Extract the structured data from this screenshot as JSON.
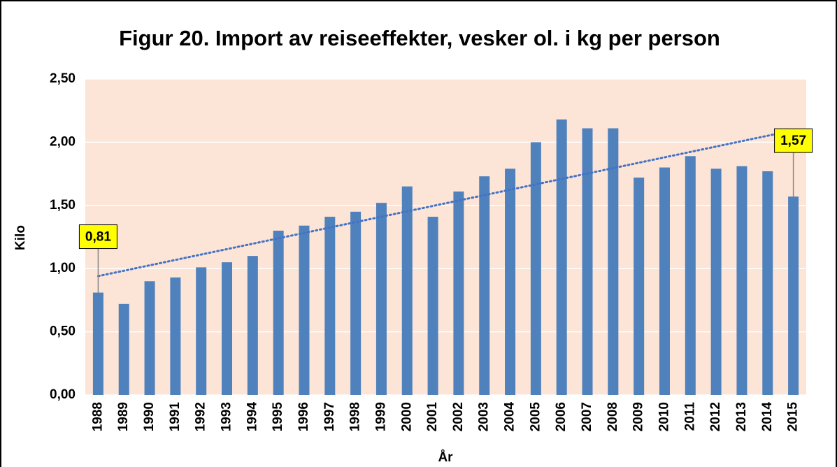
{
  "chart_data": {
    "type": "bar",
    "title": "Figur 20. Import av reiseeffekter, vesker ol. i kg per person",
    "x_label": "År",
    "y_label": "Kilo",
    "categories": [
      "1988",
      "1989",
      "1990",
      "1991",
      "1992",
      "1993",
      "1994",
      "1995",
      "1996",
      "1997",
      "1998",
      "1999",
      "2000",
      "2001",
      "2002",
      "2003",
      "2004",
      "2005",
      "2006",
      "2007",
      "2008",
      "2009",
      "2010",
      "2011",
      "2012",
      "2013",
      "2014",
      "2015"
    ],
    "values": [
      0.81,
      0.72,
      0.9,
      0.93,
      1.01,
      1.05,
      1.1,
      1.3,
      1.34,
      1.41,
      1.45,
      1.52,
      1.65,
      1.41,
      1.61,
      1.73,
      1.79,
      2.0,
      2.18,
      2.11,
      2.11,
      1.72,
      1.8,
      1.89,
      1.79,
      1.81,
      1.77,
      1.57
    ],
    "value_labels": [
      "0,81",
      null,
      null,
      null,
      null,
      null,
      null,
      null,
      null,
      null,
      null,
      null,
      null,
      null,
      null,
      null,
      null,
      null,
      null,
      null,
      null,
      null,
      null,
      null,
      null,
      null,
      null,
      "1,57"
    ],
    "color": "#4f81bd",
    "ylim": [
      0,
      2.5
    ],
    "yticks": [
      {
        "value": 0,
        "label": "0,00"
      },
      {
        "value": 0.5,
        "label": "0,50"
      },
      {
        "value": 1,
        "label": "1,00"
      },
      {
        "value": 1.5,
        "label": "1,50"
      },
      {
        "value": 2,
        "label": "2,00"
      },
      {
        "value": 2.5,
        "label": "2,50"
      }
    ],
    "grid": true,
    "trendline": true
  }
}
